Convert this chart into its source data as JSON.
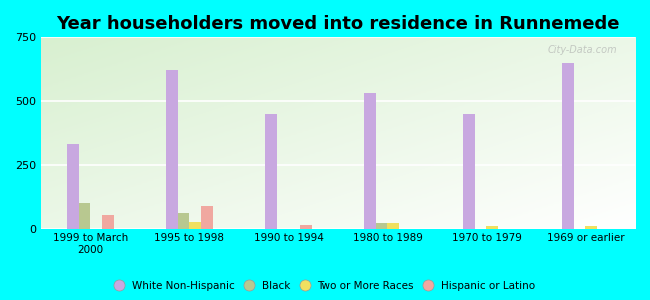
{
  "title": "Year householders moved into residence in Runnemede",
  "categories": [
    "1999 to March\n2000",
    "1995 to 1998",
    "1990 to 1994",
    "1980 to 1989",
    "1970 to 1979",
    "1969 or earlier"
  ],
  "series": {
    "White Non-Hispanic": [
      330,
      620,
      450,
      530,
      450,
      650
    ],
    "Black": [
      100,
      60,
      0,
      20,
      0,
      0
    ],
    "Two or More Races": [
      0,
      25,
      0,
      20,
      10,
      10
    ],
    "Hispanic or Latino": [
      55,
      90,
      15,
      0,
      0,
      0
    ]
  },
  "colors": {
    "White Non-Hispanic": "#c8a8e0",
    "Black": "#b8c890",
    "Two or More Races": "#f0e060",
    "Hispanic or Latino": "#f0a8a0"
  },
  "ylim": [
    0,
    750
  ],
  "yticks": [
    0,
    250,
    500,
    750
  ],
  "background_color": "#00ffff",
  "title_fontsize": 13,
  "watermark": "City-Data.com"
}
